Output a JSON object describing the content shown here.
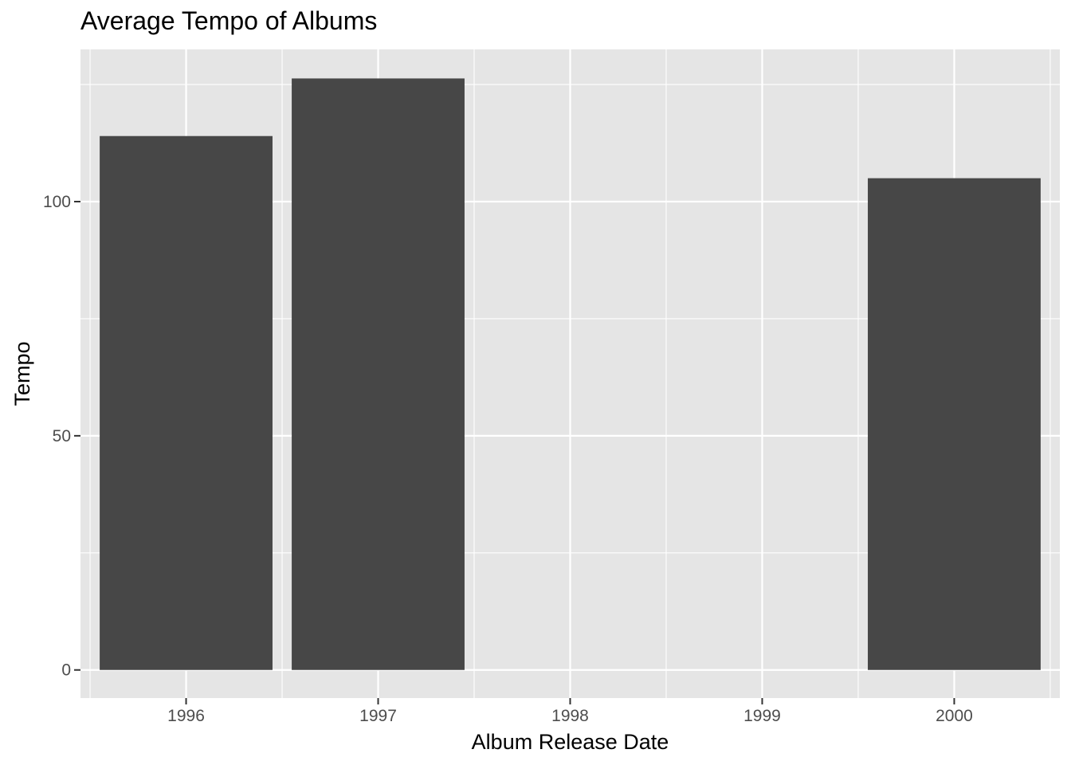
{
  "chart_data": {
    "type": "bar",
    "title": "Average Tempo of Albums",
    "xlabel": "Album Release Date",
    "ylabel": "Tempo",
    "categories": [
      "1996",
      "1997",
      "1998",
      "1999",
      "2000"
    ],
    "x": [
      1996,
      1997,
      2000
    ],
    "values": [
      114,
      126.3,
      105
    ],
    "xlim": [
      1995.45,
      2000.55
    ],
    "ylim": [
      -6,
      132.5
    ],
    "x_ticks": [
      1996,
      1997,
      1998,
      1999,
      2000
    ],
    "x_tick_labels": [
      "1996",
      "1997",
      "1998",
      "1999",
      "2000"
    ],
    "y_ticks": [
      0,
      50,
      100
    ],
    "y_tick_labels": [
      "0",
      "50",
      "100"
    ],
    "bar_width": 0.9,
    "grid": true,
    "legend": "none",
    "colors": {
      "panel": "#e5e5e5",
      "grid": "#ffffff",
      "bar": "#474747",
      "tick": "#4d4d4d"
    }
  }
}
